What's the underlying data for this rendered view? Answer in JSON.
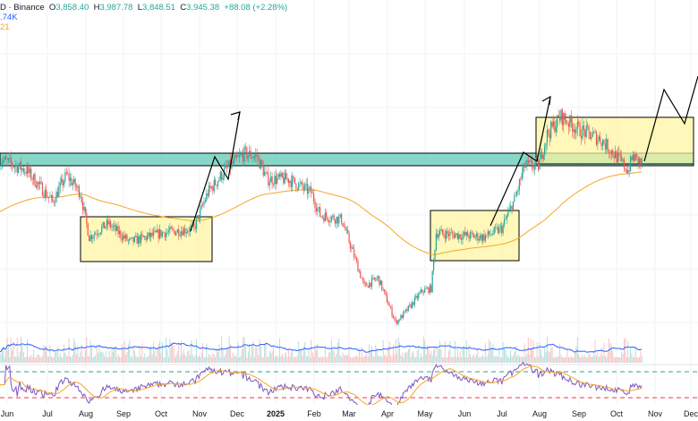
{
  "header": {
    "symbol_suffix": "D · Binance",
    "open_label": "O",
    "open": "3,858.40",
    "high_label": "H",
    "high": "3,987.78",
    "low_label": "L",
    "low": "3,848.51",
    "close_label": "C",
    "close": "3,945.38",
    "change": "+88.08 (+2.28%)",
    "volume_value": ".74K",
    "ma_value": "21"
  },
  "colors": {
    "up": "#26a69a",
    "down": "#ef5350",
    "ma": "#f6a623",
    "volume_ma": "#2962ff",
    "zone": "#5fc9b5",
    "box": "#fff59d",
    "rsi": "#7e57c2",
    "rsi_upper": "#26a69a",
    "rsi_lower": "#f23645"
  },
  "chart_data": {
    "type": "candlestick",
    "interval": "1D",
    "x_tick_labels": [
      "Jun",
      "Jul",
      "Aug",
      "Sep",
      "Oct",
      "Nov",
      "Dec",
      "2025",
      "Feb",
      "Mar",
      "Apr",
      "May",
      "Jun",
      "Jul",
      "Aug",
      "Sep",
      "Oct",
      "Nov",
      "Dec"
    ],
    "approx_close": [
      {
        "date": "2024-05-26",
        "close": 4000
      },
      {
        "date": "2024-06-16",
        "close": 3850
      },
      {
        "date": "2024-07-07",
        "close": 3400
      },
      {
        "date": "2024-07-18",
        "close": 3780
      },
      {
        "date": "2024-07-29",
        "close": 3530
      },
      {
        "date": "2024-08-05",
        "close": 2900
      },
      {
        "date": "2024-08-20",
        "close": 3090
      },
      {
        "date": "2024-09-06",
        "close": 2830
      },
      {
        "date": "2024-10-02",
        "close": 2960
      },
      {
        "date": "2024-10-27",
        "close": 3020
      },
      {
        "date": "2024-11-07",
        "close": 3530
      },
      {
        "date": "2024-11-21",
        "close": 3850
      },
      {
        "date": "2024-12-06",
        "close": 4080
      },
      {
        "date": "2024-12-16",
        "close": 4040
      },
      {
        "date": "2024-12-24",
        "close": 3720
      },
      {
        "date": "2025-01-10",
        "close": 3720
      },
      {
        "date": "2025-01-28",
        "close": 3530
      },
      {
        "date": "2025-02-04",
        "close": 3210
      },
      {
        "date": "2025-02-21",
        "close": 3150
      },
      {
        "date": "2025-03-04",
        "close": 2580
      },
      {
        "date": "2025-03-11",
        "close": 2200
      },
      {
        "date": "2025-03-22",
        "close": 2320
      },
      {
        "date": "2025-04-05",
        "close": 1690
      },
      {
        "date": "2025-04-12",
        "close": 1820
      },
      {
        "date": "2025-04-26",
        "close": 2140
      },
      {
        "date": "2025-05-03",
        "close": 2170
      },
      {
        "date": "2025-05-07",
        "close": 2960
      },
      {
        "date": "2025-05-24",
        "close": 2930
      },
      {
        "date": "2025-06-14",
        "close": 2900
      },
      {
        "date": "2025-06-28",
        "close": 3020
      },
      {
        "date": "2025-07-09",
        "close": 3470
      },
      {
        "date": "2025-07-16",
        "close": 3910
      },
      {
        "date": "2025-07-27",
        "close": 3910
      },
      {
        "date": "2025-08-03",
        "close": 4355
      },
      {
        "date": "2025-08-14",
        "close": 4610
      },
      {
        "date": "2025-08-28",
        "close": 4420
      },
      {
        "date": "2025-09-14",
        "close": 4290
      },
      {
        "date": "2025-09-21",
        "close": 4160
      },
      {
        "date": "2025-10-06",
        "close": 3850
      },
      {
        "date": "2025-10-10",
        "close": 4040
      },
      {
        "date": "2025-10-17",
        "close": 3945.38
      }
    ],
    "last_bar": {
      "open": 3858.4,
      "high": 3987.78,
      "low": 3848.51,
      "close": 3945.38,
      "change": 88.08,
      "change_pct": 2.28
    },
    "indicators": [
      "moving average",
      "volume with moving average",
      "RSI with moving average and bands"
    ],
    "grid": true
  }
}
